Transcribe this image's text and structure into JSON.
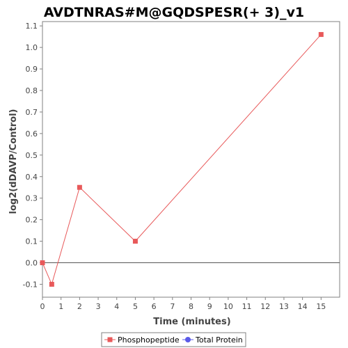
{
  "chart_data": {
    "type": "line",
    "title": "AVDTNRAS#M@GQDSPESR(+ 3)_v1",
    "xlabel": "Time (minutes)",
    "ylabel": "log2(dDAVP/Control)",
    "xlim": [
      0,
      16
    ],
    "ylim": [
      -0.16,
      1.12
    ],
    "x_ticks": [
      0,
      1,
      2,
      3,
      4,
      5,
      6,
      7,
      8,
      9,
      10,
      11,
      12,
      13,
      14,
      15
    ],
    "y_ticks": [
      -0.1,
      0.0,
      0.1,
      0.2,
      0.3,
      0.4,
      0.5,
      0.6,
      0.7,
      0.8,
      0.9,
      1.0,
      1.1
    ],
    "y_tick_labels": [
      "-0.1",
      "0.0",
      "0.1",
      "0.2",
      "0.3",
      "0.4",
      "0.5",
      "0.6",
      "0.7",
      "0.8",
      "0.9",
      "1.0",
      "1.1"
    ],
    "grid": false,
    "zero_line": true,
    "legend_position": "bottom-center",
    "series": [
      {
        "name": "Phosphopeptide",
        "color": "#e8595a",
        "marker": "square",
        "x": [
          0,
          0.5,
          2,
          5,
          15
        ],
        "y": [
          0.0,
          -0.1,
          0.35,
          0.1,
          1.06
        ]
      },
      {
        "name": "Total Protein",
        "color": "#5a5ae8",
        "marker": "circle",
        "x": [],
        "y": []
      }
    ]
  }
}
